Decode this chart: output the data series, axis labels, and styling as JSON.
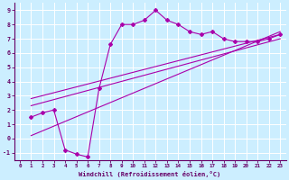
{
  "xlabel": "Windchill (Refroidissement éolien,°C)",
  "bg_color": "#cceeff",
  "line_color": "#aa00aa",
  "grid_color": "#aadddd",
  "xlim": [
    -0.5,
    23.5
  ],
  "ylim": [
    -1.5,
    9.5
  ],
  "xticks": [
    0,
    1,
    2,
    3,
    4,
    5,
    6,
    7,
    8,
    9,
    10,
    11,
    12,
    13,
    14,
    15,
    16,
    17,
    18,
    19,
    20,
    21,
    22,
    23
  ],
  "yticks": [
    -1,
    0,
    1,
    2,
    3,
    4,
    5,
    6,
    7,
    8,
    9
  ],
  "main_series": {
    "x": [
      1,
      2,
      3,
      4,
      5,
      6,
      7,
      8,
      9,
      10,
      11,
      12,
      13,
      14,
      15,
      16,
      17,
      18,
      19,
      20,
      21,
      22,
      23
    ],
    "y": [
      1.5,
      1.8,
      2.0,
      -0.8,
      -1.1,
      -1.3,
      3.5,
      6.6,
      8.0,
      8.0,
      8.3,
      9.0,
      8.3,
      8.0,
      7.5,
      7.3,
      7.5,
      7.0,
      6.8,
      6.8,
      6.8,
      7.0,
      7.3
    ]
  },
  "straight_lines": [
    {
      "x": [
        1,
        23
      ],
      "y": [
        2.3,
        7.0
      ]
    },
    {
      "x": [
        1,
        23
      ],
      "y": [
        2.8,
        7.3
      ]
    },
    {
      "x": [
        1,
        23
      ],
      "y": [
        0.2,
        7.5
      ]
    }
  ]
}
